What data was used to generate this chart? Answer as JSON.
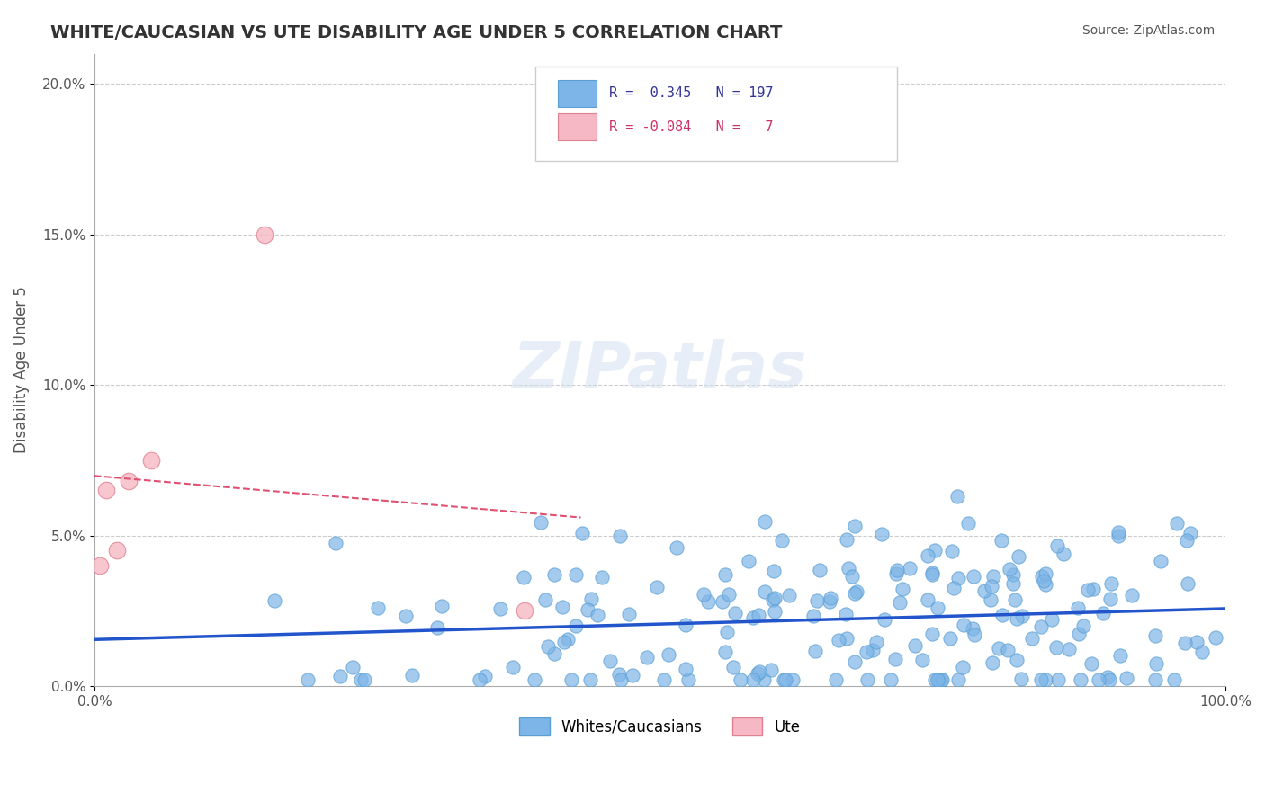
{
  "title": "WHITE/CAUCASIAN VS UTE DISABILITY AGE UNDER 5 CORRELATION CHART",
  "source": "Source: ZipAtlas.com",
  "xlabel": "",
  "ylabel": "Disability Age Under 5",
  "xlim": [
    0.0,
    1.0
  ],
  "ylim": [
    0.0,
    0.21
  ],
  "yticks": [
    0.0,
    0.05,
    0.1,
    0.15,
    0.2
  ],
  "ytick_labels": [
    "0.0%",
    "5.0%",
    "10.0%",
    "15.0%",
    "20.0%"
  ],
  "xtick_labels": [
    "0.0%",
    "100.0%"
  ],
  "blue_color": "#7eb5e8",
  "blue_edge": "#5a9fd4",
  "blue_line_color": "#2255cc",
  "pink_color": "#f5b8c4",
  "pink_edge": "#e08090",
  "pink_line_color": "#e05070",
  "R_blue": 0.345,
  "N_blue": 197,
  "R_pink": -0.084,
  "N_pink": 7,
  "legend_blue_label": "R =  0.345  N = 197",
  "legend_pink_label": "R = -0.084  N =   7",
  "watermark": "ZIPatlas",
  "background_color": "#ffffff",
  "grid_color": "#cccccc"
}
